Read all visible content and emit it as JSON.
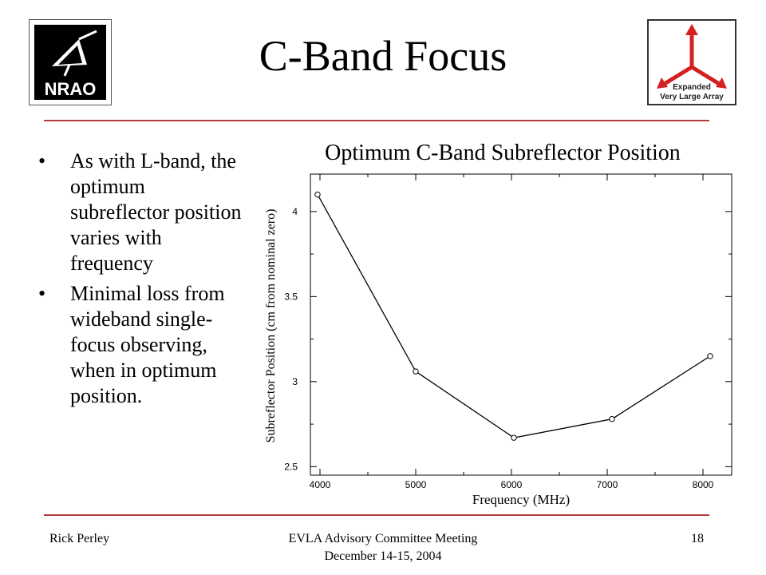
{
  "header": {
    "title": "C-Band Focus",
    "logo_left_text": "NRAO",
    "logo_right_text": [
      "Expanded",
      "Very Large Array"
    ]
  },
  "colors": {
    "rule": "#b33a3a",
    "evla_arrow": "#d42020"
  },
  "bullets": [
    "As with L-band, the optimum subreflector position varies with frequency",
    "Minimal loss from wideband single-focus observing, when in optimum position."
  ],
  "chart_data": {
    "type": "line",
    "title": "Optimum C-Band Subreflector Position",
    "xlabel": "Frequency (MHz)",
    "ylabel": "Subreflector Position (cm from nominal zero)",
    "xlim": [
      3900,
      8300
    ],
    "ylim": [
      2.45,
      4.22
    ],
    "xticks": [
      4000,
      5000,
      6000,
      7000,
      8000
    ],
    "yticks": [
      2.5,
      3,
      3.5,
      4
    ],
    "xtick_labels": [
      "4000",
      "5000",
      "6000",
      "7000",
      "8000"
    ],
    "ytick_labels": [
      "2.5",
      "3",
      "3.5",
      "4"
    ],
    "series": [
      {
        "x": [
          3975,
          5000,
          6025,
          7050,
          8075
        ],
        "values": [
          4.1,
          3.06,
          2.67,
          2.78,
          3.15
        ]
      }
    ],
    "grid": false,
    "markers": "open-circle"
  },
  "footer": {
    "left": "Rick Perley",
    "center_line1": "EVLA Advisory Committee Meeting",
    "center_line2": "December 14-15, 2004",
    "right": "18"
  }
}
